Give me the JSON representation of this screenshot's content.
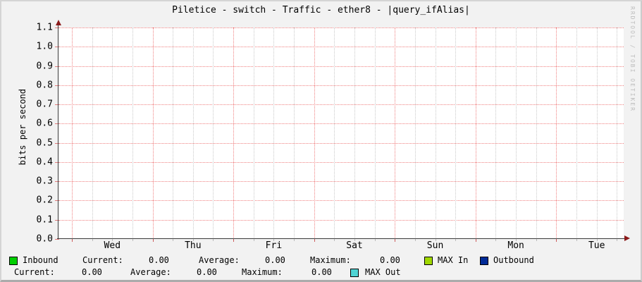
{
  "title": "Piletice - switch - Traffic - ether8 - |query_ifAlias|",
  "watermark": "RRDTOOL / TOBI OETIKER",
  "chart_data": {
    "type": "line",
    "title": "Piletice - switch - Traffic - ether8 - |query_ifAlias|",
    "xlabel": "",
    "ylabel": "bits per second",
    "ylim": [
      0.0,
      1.1
    ],
    "y_ticks": [
      "1.1",
      "1.0",
      "0.9",
      "0.8",
      "0.7",
      "0.6",
      "0.5",
      "0.4",
      "0.3",
      "0.2",
      "0.1",
      "0.0"
    ],
    "x_ticks": [
      "Wed",
      "Thu",
      "Fri",
      "Sat",
      "Sun",
      "Mon",
      "Tue"
    ],
    "grid": true,
    "legend_position": "bottom",
    "series": [
      {
        "name": "Inbound",
        "color": "#00cf00",
        "values": [
          0,
          0,
          0,
          0,
          0,
          0,
          0
        ]
      },
      {
        "name": "MAX In",
        "color": "#a0d800",
        "values": [
          0,
          0,
          0,
          0,
          0,
          0,
          0
        ]
      },
      {
        "name": "Outbound",
        "color": "#002a97",
        "values": [
          0,
          0,
          0,
          0,
          0,
          0,
          0
        ]
      },
      {
        "name": "MAX Out",
        "color": "#4fd4d4",
        "values": [
          0,
          0,
          0,
          0,
          0,
          0,
          0
        ]
      }
    ]
  },
  "legend": {
    "row1": {
      "swatch_color": "#00cf00",
      "name": "Inbound",
      "current_label": "Current:",
      "current_value": "0.00",
      "average_label": "Average:",
      "average_value": "0.00",
      "maximum_label": "Maximum:",
      "maximum_value": "0.00",
      "max_in": {
        "label": "MAX In",
        "color": "#a0d800"
      },
      "outbound": {
        "label": "Outbound",
        "color": "#002a97"
      }
    },
    "row2": {
      "current_label": "Current:",
      "current_value": "0.00",
      "average_label": "Average:",
      "average_value": "0.00",
      "maximum_label": "Maximum:",
      "maximum_value": "0.00",
      "max_out": {
        "label": "MAX Out",
        "color": "#4fd4d4"
      }
    }
  }
}
